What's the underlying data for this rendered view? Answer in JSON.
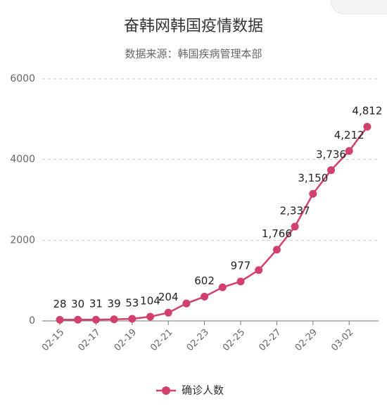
{
  "chart_data": {
    "type": "line",
    "title": "奋韩网韩国疫情数据",
    "subtitle": "数据来源：韩国疾病管理本部",
    "categories": [
      "02-15",
      null,
      "02-17",
      null,
      "02-19",
      null,
      "02-21",
      null,
      "02-23",
      null,
      "02-25",
      null,
      "02-27",
      null,
      "02-29",
      null,
      "03-02",
      null
    ],
    "series": [
      {
        "name": "确诊人数",
        "color": "#d2406e",
        "values": [
          28,
          30,
          31,
          39,
          53,
          104,
          204,
          433,
          602,
          833,
          977,
          1261,
          1766,
          2337,
          3150,
          3736,
          4212,
          4812
        ],
        "value_labels": [
          "28",
          "30",
          "31",
          "39",
          "53",
          "104",
          "204",
          null,
          "602",
          null,
          "977",
          null,
          "1,766",
          "2,337",
          "3,150",
          "3,736",
          "4,212",
          "4,812"
        ]
      }
    ],
    "ylim": [
      0,
      6000
    ],
    "yticks": [
      0,
      2000,
      4000,
      6000
    ],
    "grid": true
  }
}
